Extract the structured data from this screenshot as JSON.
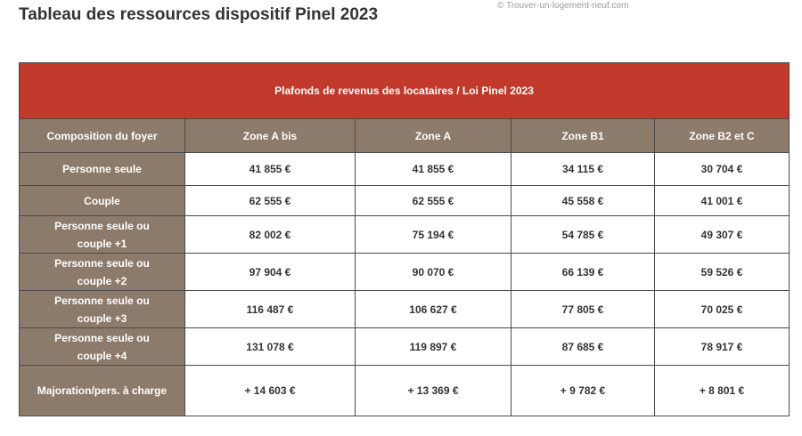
{
  "title": "Tableau des ressources dispositif Pinel 2023",
  "watermark": "© Trouver-un-logement-neuf.com",
  "table": {
    "banner": "Plafonds de revenus des locataires / Loi Pinel 2023",
    "headers": [
      "Composition du foyer",
      "Zone A bis",
      "Zone A",
      "Zone B1",
      "Zone B2 et C"
    ],
    "rows": [
      {
        "label_lines": [
          "Personne seule"
        ],
        "values": [
          "41 855 €",
          "41 855 €",
          "34 115 €",
          "30 704 €"
        ]
      },
      {
        "label_lines": [
          "Couple"
        ],
        "values": [
          "62 555 €",
          "62 555 €",
          "45 558 €",
          "41 001 €"
        ]
      },
      {
        "label_lines": [
          "Personne seule ou",
          "couple +1"
        ],
        "values": [
          "82 002 €",
          "75 194 €",
          "54 785 €",
          "49 307 €"
        ]
      },
      {
        "label_lines": [
          "Personne seule ou",
          "couple +2"
        ],
        "values": [
          "97 904 €",
          "90 070 €",
          "66 139 €",
          "59 526 €"
        ]
      },
      {
        "label_lines": [
          "Personne seule ou",
          "couple +3"
        ],
        "values": [
          "116 487 €",
          "106 627 €",
          "77 805 €",
          "70 025 €"
        ]
      },
      {
        "label_lines": [
          "Personne seule ou",
          "couple +4"
        ],
        "values": [
          "131 078 €",
          "119 897 €",
          "87 685 €",
          "78 917 €"
        ]
      },
      {
        "label_lines": [
          "Majoration/pers. à charge"
        ],
        "values": [
          "+ 14 603 €",
          "+ 13 369 €",
          "+ 9 782 €",
          "+ 8 801 €"
        ]
      }
    ]
  }
}
